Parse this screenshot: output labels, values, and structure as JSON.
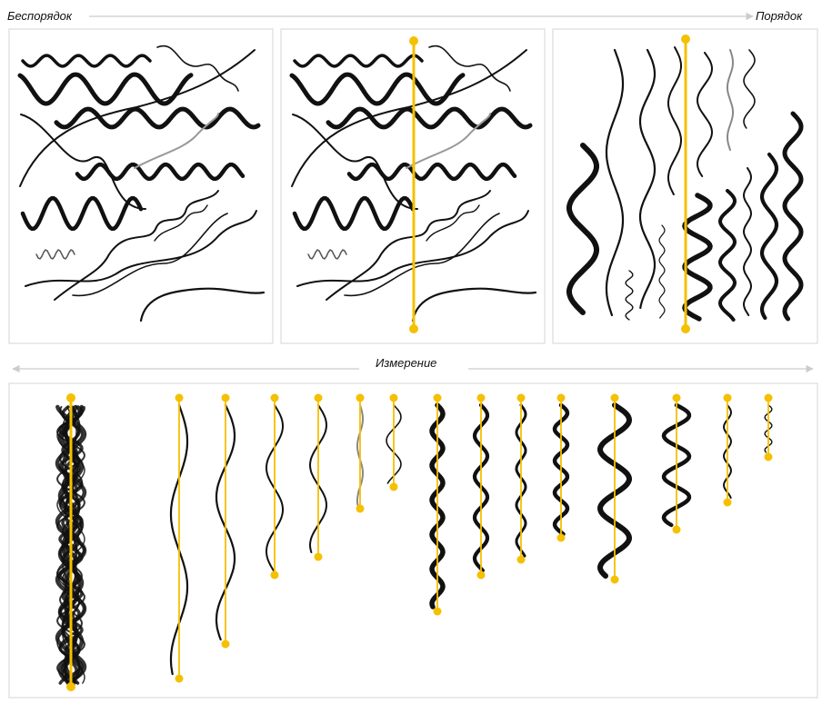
{
  "labels": {
    "disorder": "Беспорядок",
    "order": "Порядок",
    "measurement": "Измерение"
  },
  "colors": {
    "accent": "#f5c000",
    "stroke": "#111111",
    "arrow": "#cccccc",
    "frame": "#d4d4d4"
  }
}
